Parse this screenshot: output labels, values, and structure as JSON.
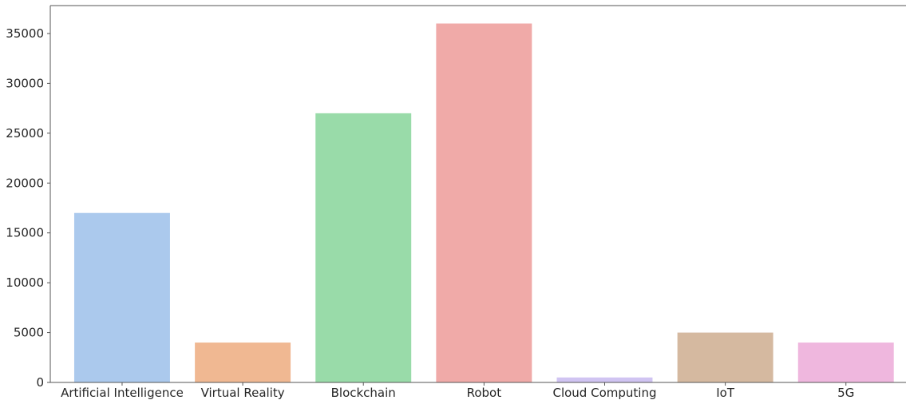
{
  "chart_data": {
    "type": "bar",
    "title": "",
    "xlabel": "",
    "ylabel": "",
    "categories": [
      "Artificial Intelligence",
      "Virtual Reality",
      "Blockchain",
      "Robot",
      "Cloud Computing",
      "IoT",
      "5G"
    ],
    "values": [
      17000,
      4000,
      27000,
      36000,
      500,
      5000,
      4000
    ],
    "colors": [
      "#abc9ed",
      "#f0b892",
      "#99dba9",
      "#f0aaa8",
      "#d0c4f2",
      "#d5b9a0",
      "#efb7de"
    ],
    "ylim": [
      0,
      37800
    ],
    "yticks": [
      0,
      5000,
      10000,
      15000,
      20000,
      25000,
      30000,
      35000
    ],
    "ytick_labels": [
      "0",
      "5000",
      "10000",
      "15000",
      "20000",
      "25000",
      "30000",
      "35000"
    ],
    "grid": false,
    "legend": "none"
  }
}
